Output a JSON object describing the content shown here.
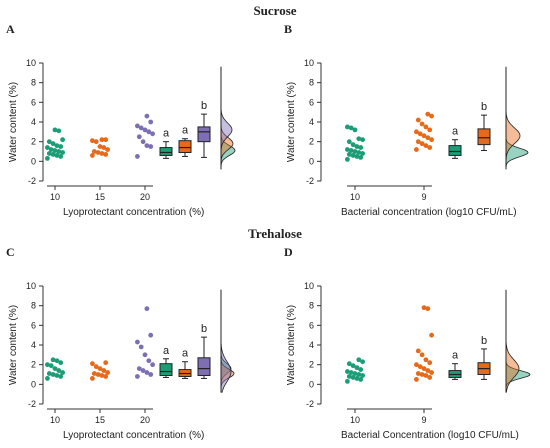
{
  "sections": [
    {
      "title": "Sucrose"
    },
    {
      "title": "Trehalose"
    }
  ],
  "colors": {
    "green": "#1b9e77",
    "orange": "#e66a1a",
    "purple": "#7e6fb5"
  },
  "chart_data": [
    {
      "panel": "A",
      "type": "scatter",
      "ylabel": "Water content (%)",
      "xlabel": "Lyoprotectant concentration (%)",
      "ylim": [
        -2,
        10
      ],
      "yticks": [
        -2,
        0,
        2,
        4,
        6,
        8,
        10
      ],
      "categories": [
        "10",
        "15",
        "20"
      ],
      "series": [
        {
          "category": "10",
          "color": "green",
          "values": [
            0.3,
            0.5,
            0.6,
            0.7,
            0.8,
            0.9,
            1.0,
            1.1,
            1.2,
            1.4,
            1.5,
            1.6,
            1.8,
            2.0,
            2.2,
            3.1,
            3.2
          ]
        },
        {
          "category": "15",
          "color": "orange",
          "values": [
            0.6,
            0.7,
            0.8,
            0.9,
            1.0,
            1.2,
            1.4,
            1.5,
            2.0,
            2.1,
            2.2,
            2.2
          ]
        },
        {
          "category": "20",
          "color": "purple",
          "values": [
            0.5,
            1.5,
            1.6,
            2.0,
            2.5,
            2.8,
            3.0,
            3.2,
            3.4,
            3.6,
            4.0,
            4.6
          ]
        }
      ],
      "boxes": [
        {
          "color": "green",
          "whisker_low": 0.3,
          "q1": 0.6,
          "median": 0.9,
          "q3": 1.4,
          "whisker_high": 2.0,
          "label": "a"
        },
        {
          "color": "orange",
          "whisker_low": 0.5,
          "q1": 0.9,
          "median": 1.4,
          "q3": 2.1,
          "whisker_high": 2.3,
          "label": "a"
        },
        {
          "color": "purple",
          "whisker_low": 0.4,
          "q1": 2.0,
          "median": 3.0,
          "q3": 3.5,
          "whisker_high": 4.8,
          "label": "b"
        }
      ],
      "densities": [
        {
          "color": "green",
          "mode": 1.1,
          "sd": 0.5,
          "width": 14
        },
        {
          "color": "orange",
          "mode": 1.8,
          "sd": 0.6,
          "width": 12
        },
        {
          "color": "purple",
          "mode": 3.2,
          "sd": 0.7,
          "width": 11
        }
      ]
    },
    {
      "panel": "B",
      "type": "scatter",
      "ylabel": "Water content (%)",
      "xlabel": "Bacterial concentration (log10 CFU/mL)",
      "ylim": [
        -2,
        10
      ],
      "yticks": [
        -2,
        0,
        2,
        4,
        6,
        8,
        10
      ],
      "categories": [
        "10",
        "9"
      ],
      "series": [
        {
          "category": "10",
          "color": "green",
          "values": [
            0.2,
            0.4,
            0.5,
            0.6,
            0.7,
            0.8,
            0.9,
            1.0,
            1.1,
            1.2,
            1.4,
            1.5,
            1.7,
            2.0,
            2.2,
            2.3,
            3.2,
            3.4,
            3.5
          ]
        },
        {
          "category": "9",
          "color": "orange",
          "values": [
            1.2,
            1.4,
            1.6,
            1.8,
            2.0,
            2.2,
            2.4,
            2.6,
            2.8,
            3.0,
            3.2,
            3.5,
            3.8,
            4.2,
            4.6,
            4.8
          ]
        }
      ],
      "boxes": [
        {
          "color": "green",
          "whisker_low": 0.3,
          "q1": 0.6,
          "median": 1.0,
          "q3": 1.6,
          "whisker_high": 2.2,
          "label": "a"
        },
        {
          "color": "orange",
          "whisker_low": 1.1,
          "q1": 1.7,
          "median": 2.4,
          "q3": 3.3,
          "whisker_high": 4.7,
          "label": "b"
        }
      ],
      "densities": [
        {
          "color": "green",
          "mode": 0.9,
          "sd": 0.45,
          "width": 22
        },
        {
          "color": "orange",
          "mode": 2.6,
          "sd": 0.8,
          "width": 14
        }
      ]
    },
    {
      "panel": "C",
      "type": "scatter",
      "ylabel": "Water content (%)",
      "xlabel": "Lyoprotectant concentration (%)",
      "ylim": [
        -2,
        10
      ],
      "yticks": [
        -2,
        0,
        2,
        4,
        6,
        8,
        10
      ],
      "categories": [
        "10",
        "15",
        "20"
      ],
      "series": [
        {
          "category": "10",
          "color": "green",
          "values": [
            0.6,
            0.8,
            0.9,
            1.0,
            1.1,
            1.2,
            1.4,
            1.6,
            1.9,
            2.0,
            2.2,
            2.4,
            2.5
          ]
        },
        {
          "category": "15",
          "color": "orange",
          "values": [
            0.6,
            0.8,
            0.9,
            1.0,
            1.1,
            1.2,
            1.4,
            1.6,
            1.8,
            2.1,
            2.2
          ]
        },
        {
          "category": "20",
          "color": "purple",
          "values": [
            0.8,
            1.0,
            1.2,
            1.4,
            1.6,
            2.0,
            2.4,
            3.0,
            3.8,
            4.3,
            5.0,
            7.7
          ]
        }
      ],
      "boxes": [
        {
          "color": "green",
          "whisker_low": 0.7,
          "q1": 0.9,
          "median": 1.3,
          "q3": 2.1,
          "whisker_high": 2.6,
          "label": "a"
        },
        {
          "color": "orange",
          "whisker_low": 0.6,
          "q1": 0.8,
          "median": 1.1,
          "q3": 1.5,
          "whisker_high": 2.3,
          "label": "a"
        },
        {
          "color": "purple",
          "whisker_low": 0.6,
          "q1": 0.9,
          "median": 1.6,
          "q3": 2.7,
          "whisker_high": 4.8,
          "label": "b"
        }
      ],
      "densities": [
        {
          "color": "green",
          "mode": 1.6,
          "sd": 0.5,
          "width": 10
        },
        {
          "color": "orange",
          "mode": 1.1,
          "sd": 0.45,
          "width": 13
        },
        {
          "color": "purple",
          "mode": 1.3,
          "sd": 1.0,
          "width": 10
        }
      ]
    },
    {
      "panel": "D",
      "type": "scatter",
      "ylabel": "Water content (%)",
      "xlabel": "Bacterial Concentration (log10 CFU/mL)",
      "ylim": [
        -2,
        10
      ],
      "yticks": [
        -2,
        0,
        2,
        4,
        6,
        8,
        10
      ],
      "categories": [
        "10",
        "9"
      ],
      "series": [
        {
          "category": "10",
          "color": "green",
          "values": [
            0.3,
            0.5,
            0.6,
            0.7,
            0.8,
            0.9,
            1.0,
            1.1,
            1.2,
            1.3,
            1.5,
            1.7,
            1.9,
            2.1,
            2.3,
            2.5
          ]
        },
        {
          "category": "9",
          "color": "orange",
          "values": [
            0.5,
            0.7,
            0.9,
            1.0,
            1.1,
            1.2,
            1.4,
            1.6,
            1.8,
            2.0,
            2.2,
            2.5,
            3.0,
            3.4,
            5.0,
            7.7,
            7.8
          ]
        }
      ],
      "boxes": [
        {
          "color": "green",
          "whisker_low": 0.5,
          "q1": 0.7,
          "median": 1.0,
          "q3": 1.4,
          "whisker_high": 2.1,
          "label": "a"
        },
        {
          "color": "orange",
          "whisker_low": 0.5,
          "q1": 1.0,
          "median": 1.6,
          "q3": 2.2,
          "whisker_high": 3.6,
          "label": "b"
        }
      ],
      "densities": [
        {
          "color": "green",
          "mode": 1.0,
          "sd": 0.4,
          "width": 24
        },
        {
          "color": "orange",
          "mode": 1.6,
          "sd": 0.9,
          "width": 13
        }
      ]
    }
  ]
}
